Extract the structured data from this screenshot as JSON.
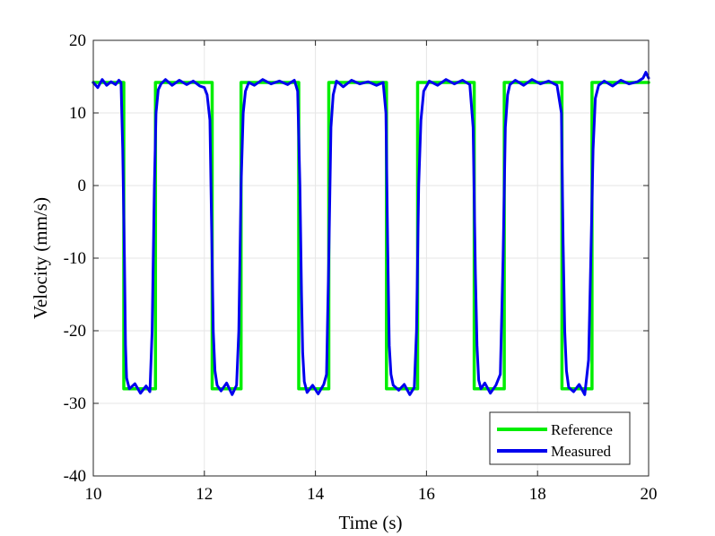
{
  "chart_data": {
    "type": "line",
    "xlabel": "Time (s)",
    "ylabel": "Velocity (mm/s)",
    "xlim": [
      10,
      20
    ],
    "ylim": [
      -40,
      20
    ],
    "xticks": [
      10,
      12,
      14,
      16,
      18,
      20
    ],
    "yticks": [
      -40,
      -30,
      -20,
      -10,
      0,
      10,
      20
    ],
    "grid": true,
    "legend_position": "bottom-right",
    "series": [
      {
        "name": "Reference",
        "color": "#00ee00",
        "x": [
          10.0,
          10.55,
          10.55,
          11.12,
          11.12,
          12.14,
          12.14,
          12.66,
          12.66,
          13.7,
          13.7,
          14.24,
          14.24,
          15.28,
          15.28,
          15.84,
          15.84,
          16.86,
          16.86,
          17.4,
          17.4,
          18.44,
          18.44,
          18.98,
          18.98,
          20.0
        ],
        "values": [
          14.2,
          14.2,
          -28.0,
          -28.0,
          14.2,
          14.2,
          -28.0,
          -28.0,
          14.2,
          14.2,
          -28.0,
          -28.0,
          14.2,
          14.2,
          -28.0,
          -28.0,
          14.2,
          14.2,
          -28.0,
          -28.0,
          14.2,
          14.2,
          -28.0,
          -28.0,
          14.2,
          14.2
        ]
      },
      {
        "name": "Measured",
        "color": "#0000ee",
        "x": [
          10.0,
          10.08,
          10.16,
          10.24,
          10.32,
          10.4,
          10.46,
          10.5,
          10.53,
          10.56,
          10.58,
          10.6,
          10.65,
          10.75,
          10.85,
          10.95,
          11.02,
          11.06,
          11.1,
          11.13,
          11.17,
          11.22,
          11.3,
          11.42,
          11.55,
          11.68,
          11.8,
          11.92,
          12.0,
          12.05,
          12.1,
          12.13,
          12.16,
          12.19,
          12.23,
          12.3,
          12.4,
          12.5,
          12.58,
          12.62,
          12.66,
          12.7,
          12.74,
          12.8,
          12.9,
          13.05,
          13.2,
          13.35,
          13.5,
          13.62,
          13.68,
          13.72,
          13.75,
          13.77,
          13.8,
          13.85,
          13.95,
          14.05,
          14.15,
          14.2,
          14.24,
          14.28,
          14.32,
          14.38,
          14.5,
          14.65,
          14.8,
          14.95,
          15.1,
          15.22,
          15.27,
          15.3,
          15.33,
          15.36,
          15.4,
          15.5,
          15.6,
          15.7,
          15.78,
          15.82,
          15.86,
          15.9,
          15.95,
          16.05,
          16.2,
          16.35,
          16.5,
          16.65,
          16.78,
          16.84,
          16.88,
          16.91,
          16.94,
          16.98,
          17.05,
          17.15,
          17.25,
          17.33,
          17.38,
          17.42,
          17.46,
          17.5,
          17.6,
          17.75,
          17.9,
          18.05,
          18.2,
          18.35,
          18.43,
          18.46,
          18.49,
          18.52,
          18.56,
          18.65,
          18.75,
          18.85,
          18.92,
          18.96,
          19.0,
          19.04,
          19.1,
          19.2,
          19.35,
          19.5,
          19.65,
          19.8,
          19.9,
          19.95,
          20.0
        ],
        "values": [
          14.2,
          13.5,
          14.6,
          13.8,
          14.3,
          13.9,
          14.5,
          14.2,
          5.0,
          -10.0,
          -22.0,
          -26.5,
          -28.0,
          -27.3,
          -28.6,
          -27.6,
          -28.4,
          -20.0,
          0.0,
          10.0,
          13.2,
          14.0,
          14.6,
          13.8,
          14.5,
          13.9,
          14.4,
          13.7,
          13.5,
          12.5,
          9.0,
          -5.0,
          -20.0,
          -25.5,
          -27.5,
          -28.3,
          -27.2,
          -28.8,
          -27.5,
          -20.0,
          0.0,
          10.0,
          13.0,
          14.2,
          13.8,
          14.6,
          14.0,
          14.4,
          13.9,
          14.5,
          13.0,
          0.0,
          -15.0,
          -23.0,
          -27.0,
          -28.5,
          -27.5,
          -28.7,
          -27.4,
          -26.0,
          -10.0,
          8.0,
          12.5,
          14.4,
          13.6,
          14.5,
          14.0,
          14.3,
          13.8,
          14.2,
          10.0,
          -8.0,
          -22.0,
          -26.0,
          -27.5,
          -28.2,
          -27.4,
          -28.8,
          -27.8,
          -20.0,
          0.0,
          9.0,
          13.0,
          14.4,
          13.8,
          14.6,
          14.0,
          14.5,
          13.9,
          8.0,
          -12.0,
          -22.0,
          -26.8,
          -28.0,
          -27.2,
          -28.6,
          -27.5,
          -26.0,
          -10.0,
          8.0,
          12.5,
          13.9,
          14.5,
          13.8,
          14.6,
          14.0,
          14.4,
          13.8,
          10.0,
          -8.0,
          -20.0,
          -25.5,
          -27.8,
          -28.4,
          -27.4,
          -28.8,
          -24.0,
          -10.0,
          5.0,
          12.0,
          13.8,
          14.4,
          13.7,
          14.5,
          14.0,
          14.3,
          14.8,
          15.6,
          14.8
        ]
      }
    ]
  }
}
